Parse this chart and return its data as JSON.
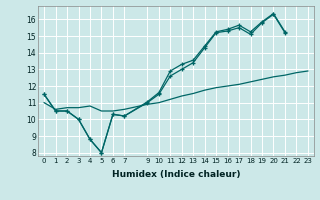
{
  "xlabel": "Humidex (Indice chaleur)",
  "bg_color": "#cce8e8",
  "grid_color": "#ffffff",
  "line_color": "#006666",
  "xlim": [
    -0.5,
    23.5
  ],
  "ylim": [
    7.8,
    16.8
  ],
  "xticks": [
    0,
    1,
    2,
    3,
    4,
    5,
    6,
    7,
    9,
    10,
    11,
    12,
    13,
    14,
    15,
    16,
    17,
    18,
    19,
    20,
    21,
    22,
    23
  ],
  "yticks": [
    8,
    9,
    10,
    11,
    12,
    13,
    14,
    15,
    16
  ],
  "line1_x": [
    0,
    1,
    2,
    3,
    4,
    5,
    6,
    7,
    9,
    10,
    11,
    12,
    13,
    14,
    15,
    16,
    17,
    18,
    19,
    20,
    21
  ],
  "line1_y": [
    11.5,
    10.5,
    10.5,
    10.0,
    8.8,
    8.0,
    10.3,
    10.2,
    11.0,
    11.5,
    12.6,
    13.0,
    13.4,
    14.3,
    15.2,
    15.3,
    15.5,
    15.1,
    15.8,
    16.3,
    15.2
  ],
  "line2_x": [
    0,
    1,
    2,
    3,
    4,
    5,
    6,
    7,
    9,
    10,
    11,
    12,
    13,
    14,
    15,
    16,
    17,
    18,
    19,
    20,
    21
  ],
  "line2_y": [
    11.5,
    10.5,
    10.5,
    10.0,
    8.8,
    8.0,
    10.3,
    10.2,
    11.05,
    11.6,
    12.9,
    13.3,
    13.55,
    14.4,
    15.25,
    15.4,
    15.65,
    15.25,
    15.85,
    16.35,
    15.25
  ],
  "line3_x": [
    0,
    1,
    2,
    3,
    4,
    5,
    6,
    7,
    9,
    10,
    11,
    12,
    13,
    14,
    15,
    16,
    17,
    18,
    19,
    20,
    21,
    22,
    23
  ],
  "line3_y": [
    11.0,
    10.6,
    10.7,
    10.7,
    10.8,
    10.5,
    10.5,
    10.6,
    10.9,
    11.0,
    11.2,
    11.4,
    11.55,
    11.75,
    11.9,
    12.0,
    12.1,
    12.25,
    12.4,
    12.55,
    12.65,
    12.8,
    12.9
  ]
}
